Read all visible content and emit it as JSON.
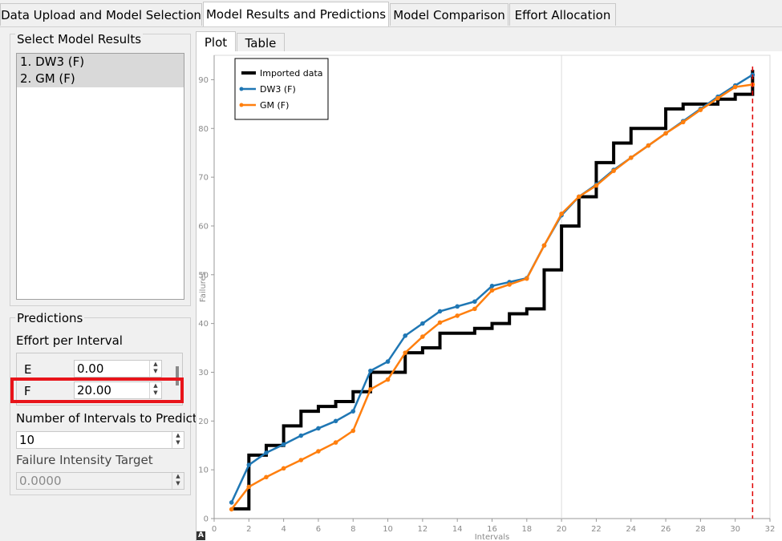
{
  "tabs": [
    {
      "label": "Data Upload and Model Selection"
    },
    {
      "label": "Model Results and Predictions"
    },
    {
      "label": "Model Comparison"
    },
    {
      "label": "Effort Allocation"
    }
  ],
  "models": {
    "title": "Select Model Results",
    "items": [
      "1. DW3 (F)",
      "2. GM (F)"
    ]
  },
  "predictions": {
    "title": "Predictions",
    "effort_label": "Effort per Interval",
    "effort_rows": [
      {
        "name": "E",
        "value": "0.00"
      },
      {
        "name": "F",
        "value": "20.00"
      }
    ],
    "intervals_label": "Number of Intervals to Predict",
    "intervals_value": "10",
    "target_label": "Failure Intensity Target",
    "target_value": "0.0000"
  },
  "plot_tabs": [
    "Plot",
    "Table"
  ],
  "colors": {
    "imported": "#000000",
    "dw3": "#1f77b4",
    "gm": "#ff7f0e",
    "highlight": "#e8141a",
    "vline": "#e00000"
  },
  "chart_data": {
    "type": "line",
    "xlabel": "Intervals",
    "ylabel": "Failures",
    "xlim": [
      0,
      32
    ],
    "ylim": [
      0,
      95
    ],
    "xticks": [
      0,
      2,
      4,
      6,
      8,
      10,
      12,
      14,
      16,
      18,
      20,
      22,
      24,
      26,
      28,
      30,
      32
    ],
    "yticks": [
      0,
      10,
      20,
      30,
      40,
      50,
      60,
      70,
      80,
      90
    ],
    "vline_x": 31,
    "legend_position": "top-left",
    "series": [
      {
        "name": "Imported data",
        "style": "step",
        "x": [
          1,
          2,
          3,
          4,
          5,
          6,
          7,
          8,
          9,
          10,
          11,
          12,
          13,
          14,
          15,
          16,
          17,
          18,
          19,
          20,
          21,
          22,
          23,
          24,
          25,
          26,
          27,
          28,
          29,
          30,
          31
        ],
        "y": [
          2,
          13,
          15,
          19,
          22,
          23,
          24,
          26,
          30,
          30,
          34,
          35,
          38,
          38,
          39,
          40,
          42,
          43,
          51,
          60,
          66,
          73,
          77,
          80,
          80,
          84,
          85,
          85,
          86,
          87,
          92
        ]
      },
      {
        "name": "DW3 (F)",
        "style": "line",
        "x": [
          1,
          2,
          3,
          4,
          5,
          6,
          7,
          8,
          9,
          10,
          11,
          12,
          13,
          14,
          15,
          16,
          17,
          18,
          19,
          20,
          21,
          22,
          23,
          24,
          25,
          26,
          27,
          28,
          29,
          30,
          31
        ],
        "y": [
          3.3,
          11,
          13.5,
          15.2,
          17,
          18.5,
          20,
          22,
          30.3,
          32.2,
          37.5,
          40,
          42.5,
          43.5,
          44.5,
          47.7,
          48.5,
          49.3,
          56,
          62.2,
          66,
          68.5,
          71.5,
          74,
          76.5,
          79,
          81.5,
          84,
          86.5,
          88.8,
          91
        ]
      },
      {
        "name": "GM (F)",
        "style": "line",
        "x": [
          1,
          2,
          3,
          4,
          5,
          6,
          7,
          8,
          9,
          10,
          11,
          12,
          13,
          14,
          15,
          16,
          17,
          18,
          19,
          20,
          21,
          22,
          23,
          24,
          25,
          26,
          27,
          28,
          29,
          30,
          31
        ],
        "y": [
          1.9,
          6.5,
          8.5,
          10.3,
          12,
          13.8,
          15.6,
          18,
          26.5,
          28.5,
          34,
          37.3,
          40.2,
          41.6,
          43,
          46.8,
          48,
          49.2,
          56,
          62.5,
          66,
          68.3,
          71.3,
          74,
          76.5,
          79,
          81.3,
          83.8,
          86.2,
          88.5,
          89
        ]
      }
    ]
  }
}
